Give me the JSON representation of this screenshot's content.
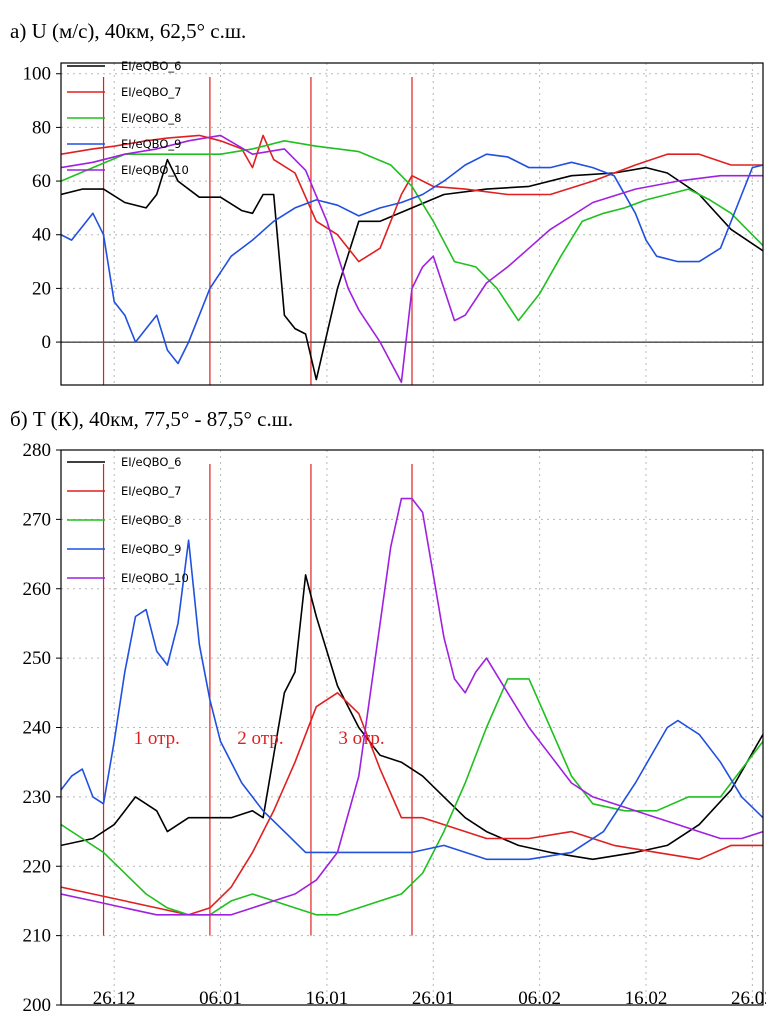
{
  "chart_data": [
    {
      "type": "line",
      "panel_label": "а)",
      "title": "U (м/с), 40км, 62,5° с.ш.",
      "ylim": [
        -16,
        104
      ],
      "yticks": [
        "0",
        "20",
        "40",
        "60",
        "80",
        "100"
      ],
      "ytick_values": [
        0,
        20,
        40,
        60,
        80,
        100
      ],
      "xlim": [
        0,
        66
      ],
      "x_tick_positions": [
        5,
        15,
        25,
        35,
        45,
        55,
        65
      ],
      "grid": true,
      "zero_line": true,
      "legend_position": "top-left",
      "vertical_markers": [
        4,
        14,
        23.5,
        33
      ],
      "series": [
        {
          "name": "EI/eQBO_6",
          "color": "#000000",
          "x": [
            0,
            2,
            4,
            6,
            8,
            9,
            10,
            11,
            13,
            15,
            17,
            18,
            19,
            20,
            21,
            22,
            23,
            24,
            26,
            28,
            30,
            33,
            36,
            40,
            44,
            48,
            52,
            55,
            57,
            60,
            63,
            66
          ],
          "y": [
            55,
            57,
            57,
            52,
            50,
            55,
            68,
            60,
            54,
            54,
            49,
            48,
            55,
            55,
            10,
            5,
            3,
            -14,
            20,
            45,
            45,
            50,
            55,
            57,
            58,
            62,
            63,
            65,
            63,
            55,
            42,
            34
          ]
        },
        {
          "name": "EI/eQBO_7",
          "color": "#e02020",
          "x": [
            0,
            3,
            5,
            8,
            10,
            13,
            15,
            17,
            18,
            19,
            20,
            22,
            24,
            26,
            28,
            30,
            32,
            33,
            35,
            38,
            42,
            46,
            50,
            54,
            57,
            60,
            63,
            66
          ],
          "y": [
            70,
            72,
            73,
            75,
            76,
            77,
            75,
            72,
            65,
            77,
            68,
            63,
            45,
            40,
            30,
            35,
            55,
            62,
            58,
            57,
            55,
            55,
            60,
            66,
            70,
            70,
            66,
            66
          ]
        },
        {
          "name": "EI/eQBO_8",
          "color": "#20c020",
          "x": [
            0,
            3,
            6,
            9,
            12,
            15,
            18,
            21,
            24,
            28,
            31,
            33,
            35,
            37,
            39,
            41,
            43,
            45,
            47,
            49,
            51,
            53,
            55,
            57,
            59,
            61,
            63,
            66
          ],
          "y": [
            60,
            65,
            70,
            70,
            70,
            70,
            72,
            75,
            73,
            71,
            66,
            58,
            45,
            30,
            28,
            20,
            8,
            18,
            32,
            45,
            48,
            50,
            53,
            55,
            57,
            53,
            48,
            36
          ]
        },
        {
          "name": "EI/eQBO_9",
          "color": "#2050e0",
          "x": [
            0,
            1,
            3,
            4,
            5,
            6,
            7,
            8,
            9,
            10,
            11,
            12,
            13,
            14,
            16,
            18,
            20,
            22,
            24,
            26,
            28,
            30,
            32,
            34,
            36,
            38,
            40,
            42,
            44,
            46,
            48,
            50,
            52,
            54,
            55,
            56,
            58,
            60,
            62,
            64,
            65,
            66
          ],
          "y": [
            40,
            38,
            48,
            40,
            15,
            10,
            0,
            5,
            10,
            -3,
            -8,
            0,
            10,
            20,
            32,
            38,
            45,
            50,
            53,
            51,
            47,
            50,
            52,
            55,
            60,
            66,
            70,
            69,
            65,
            65,
            67,
            65,
            62,
            48,
            38,
            32,
            30,
            30,
            35,
            55,
            65,
            66
          ]
        },
        {
          "name": "EI/eQBO_10",
          "color": "#a020e0",
          "x": [
            0,
            3,
            6,
            9,
            12,
            15,
            18,
            21,
            23,
            25,
            27,
            28,
            30,
            32,
            33,
            34,
            35,
            36,
            37,
            38,
            40,
            42,
            44,
            46,
            50,
            54,
            58,
            62,
            66
          ],
          "y": [
            65,
            67,
            70,
            72,
            75,
            77,
            70,
            72,
            64,
            45,
            20,
            12,
            0,
            -15,
            20,
            28,
            32,
            20,
            8,
            10,
            22,
            28,
            35,
            42,
            52,
            57,
            60,
            62,
            62
          ]
        }
      ]
    },
    {
      "type": "line",
      "panel_label": "б)",
      "title": "T (К), 40км, 77,5° - 87,5° с.ш.",
      "ylim": [
        200,
        280
      ],
      "yticks": [
        "200",
        "210",
        "220",
        "230",
        "240",
        "250",
        "260",
        "270",
        "280"
      ],
      "ytick_values": [
        200,
        210,
        220,
        230,
        240,
        250,
        260,
        270,
        280
      ],
      "xlim": [
        0,
        66
      ],
      "x_tick_positions": [
        5,
        15,
        25,
        35,
        45,
        55,
        65
      ],
      "xticks": [
        "26.12",
        "06.01",
        "16.01",
        "26.01",
        "06.02",
        "16.02",
        "26.02"
      ],
      "grid": true,
      "legend_position": "top-left",
      "vertical_markers": [
        4,
        14,
        23.5,
        33
      ],
      "annotations": [
        "1 отр.",
        "2 отр.",
        "3 отр."
      ],
      "series": [
        {
          "name": "EI/eQBO_6",
          "color": "#000000",
          "x": [
            0,
            3,
            5,
            7,
            9,
            10,
            12,
            14,
            16,
            18,
            19,
            20,
            21,
            22,
            23,
            24,
            26,
            28,
            30,
            32,
            34,
            36,
            38,
            40,
            43,
            46,
            50,
            54,
            57,
            60,
            63,
            66
          ],
          "y": [
            223,
            224,
            226,
            230,
            228,
            225,
            227,
            227,
            227,
            228,
            227,
            236,
            245,
            248,
            262,
            256,
            246,
            240,
            236,
            235,
            233,
            230,
            227,
            225,
            223,
            222,
            221,
            222,
            223,
            226,
            231,
            239
          ]
        },
        {
          "name": "EI/eQBO_7",
          "color": "#e02020",
          "x": [
            0,
            3,
            6,
            9,
            12,
            14,
            16,
            18,
            20,
            22,
            24,
            26,
            28,
            30,
            32,
            34,
            36,
            40,
            44,
            48,
            52,
            56,
            60,
            63,
            66
          ],
          "y": [
            217,
            216,
            215,
            214,
            213,
            214,
            217,
            222,
            228,
            235,
            243,
            245,
            242,
            234,
            227,
            227,
            226,
            224,
            224,
            225,
            223,
            222,
            221,
            223,
            223
          ]
        },
        {
          "name": "EI/eQBO_8",
          "color": "#20c020",
          "x": [
            0,
            2,
            4,
            6,
            8,
            10,
            12,
            14,
            16,
            18,
            20,
            22,
            24,
            26,
            28,
            30,
            32,
            34,
            36,
            38,
            40,
            42,
            44,
            46,
            48,
            50,
            53,
            56,
            59,
            62,
            64,
            66
          ],
          "y": [
            226,
            224,
            222,
            219,
            216,
            214,
            213,
            213,
            215,
            216,
            215,
            214,
            213,
            213,
            214,
            215,
            216,
            219,
            225,
            232,
            240,
            247,
            247,
            240,
            233,
            229,
            228,
            228,
            230,
            230,
            234,
            238
          ]
        },
        {
          "name": "EI/eQBO_9",
          "color": "#2050e0",
          "x": [
            0,
            1,
            2,
            3,
            4,
            5,
            6,
            7,
            8,
            9,
            10,
            11,
            12,
            13,
            14,
            15,
            17,
            19,
            21,
            23,
            25,
            27,
            30,
            33,
            36,
            40,
            44,
            48,
            51,
            54,
            57,
            58,
            59,
            60,
            62,
            64,
            66
          ],
          "y": [
            231,
            233,
            234,
            230,
            229,
            238,
            248,
            256,
            257,
            251,
            249,
            255,
            267,
            252,
            244,
            238,
            232,
            228,
            225,
            222,
            222,
            222,
            222,
            222,
            223,
            221,
            221,
            222,
            225,
            232,
            240,
            241,
            240,
            239,
            235,
            230,
            227
          ]
        },
        {
          "name": "EI/eQBO_10",
          "color": "#a020e0",
          "x": [
            0,
            3,
            6,
            9,
            12,
            14,
            16,
            18,
            20,
            22,
            24,
            26,
            28,
            30,
            31,
            32,
            33,
            34,
            35,
            36,
            37,
            38,
            39,
            40,
            42,
            44,
            46,
            48,
            50,
            52,
            54,
            56,
            58,
            60,
            62,
            64,
            66
          ],
          "y": [
            216,
            215,
            214,
            213,
            213,
            213,
            213,
            214,
            215,
            216,
            218,
            222,
            233,
            255,
            266,
            273,
            273,
            271,
            262,
            253,
            247,
            245,
            248,
            250,
            245,
            240,
            236,
            232,
            230,
            229,
            228,
            227,
            226,
            225,
            224,
            224,
            225
          ]
        }
      ]
    }
  ]
}
